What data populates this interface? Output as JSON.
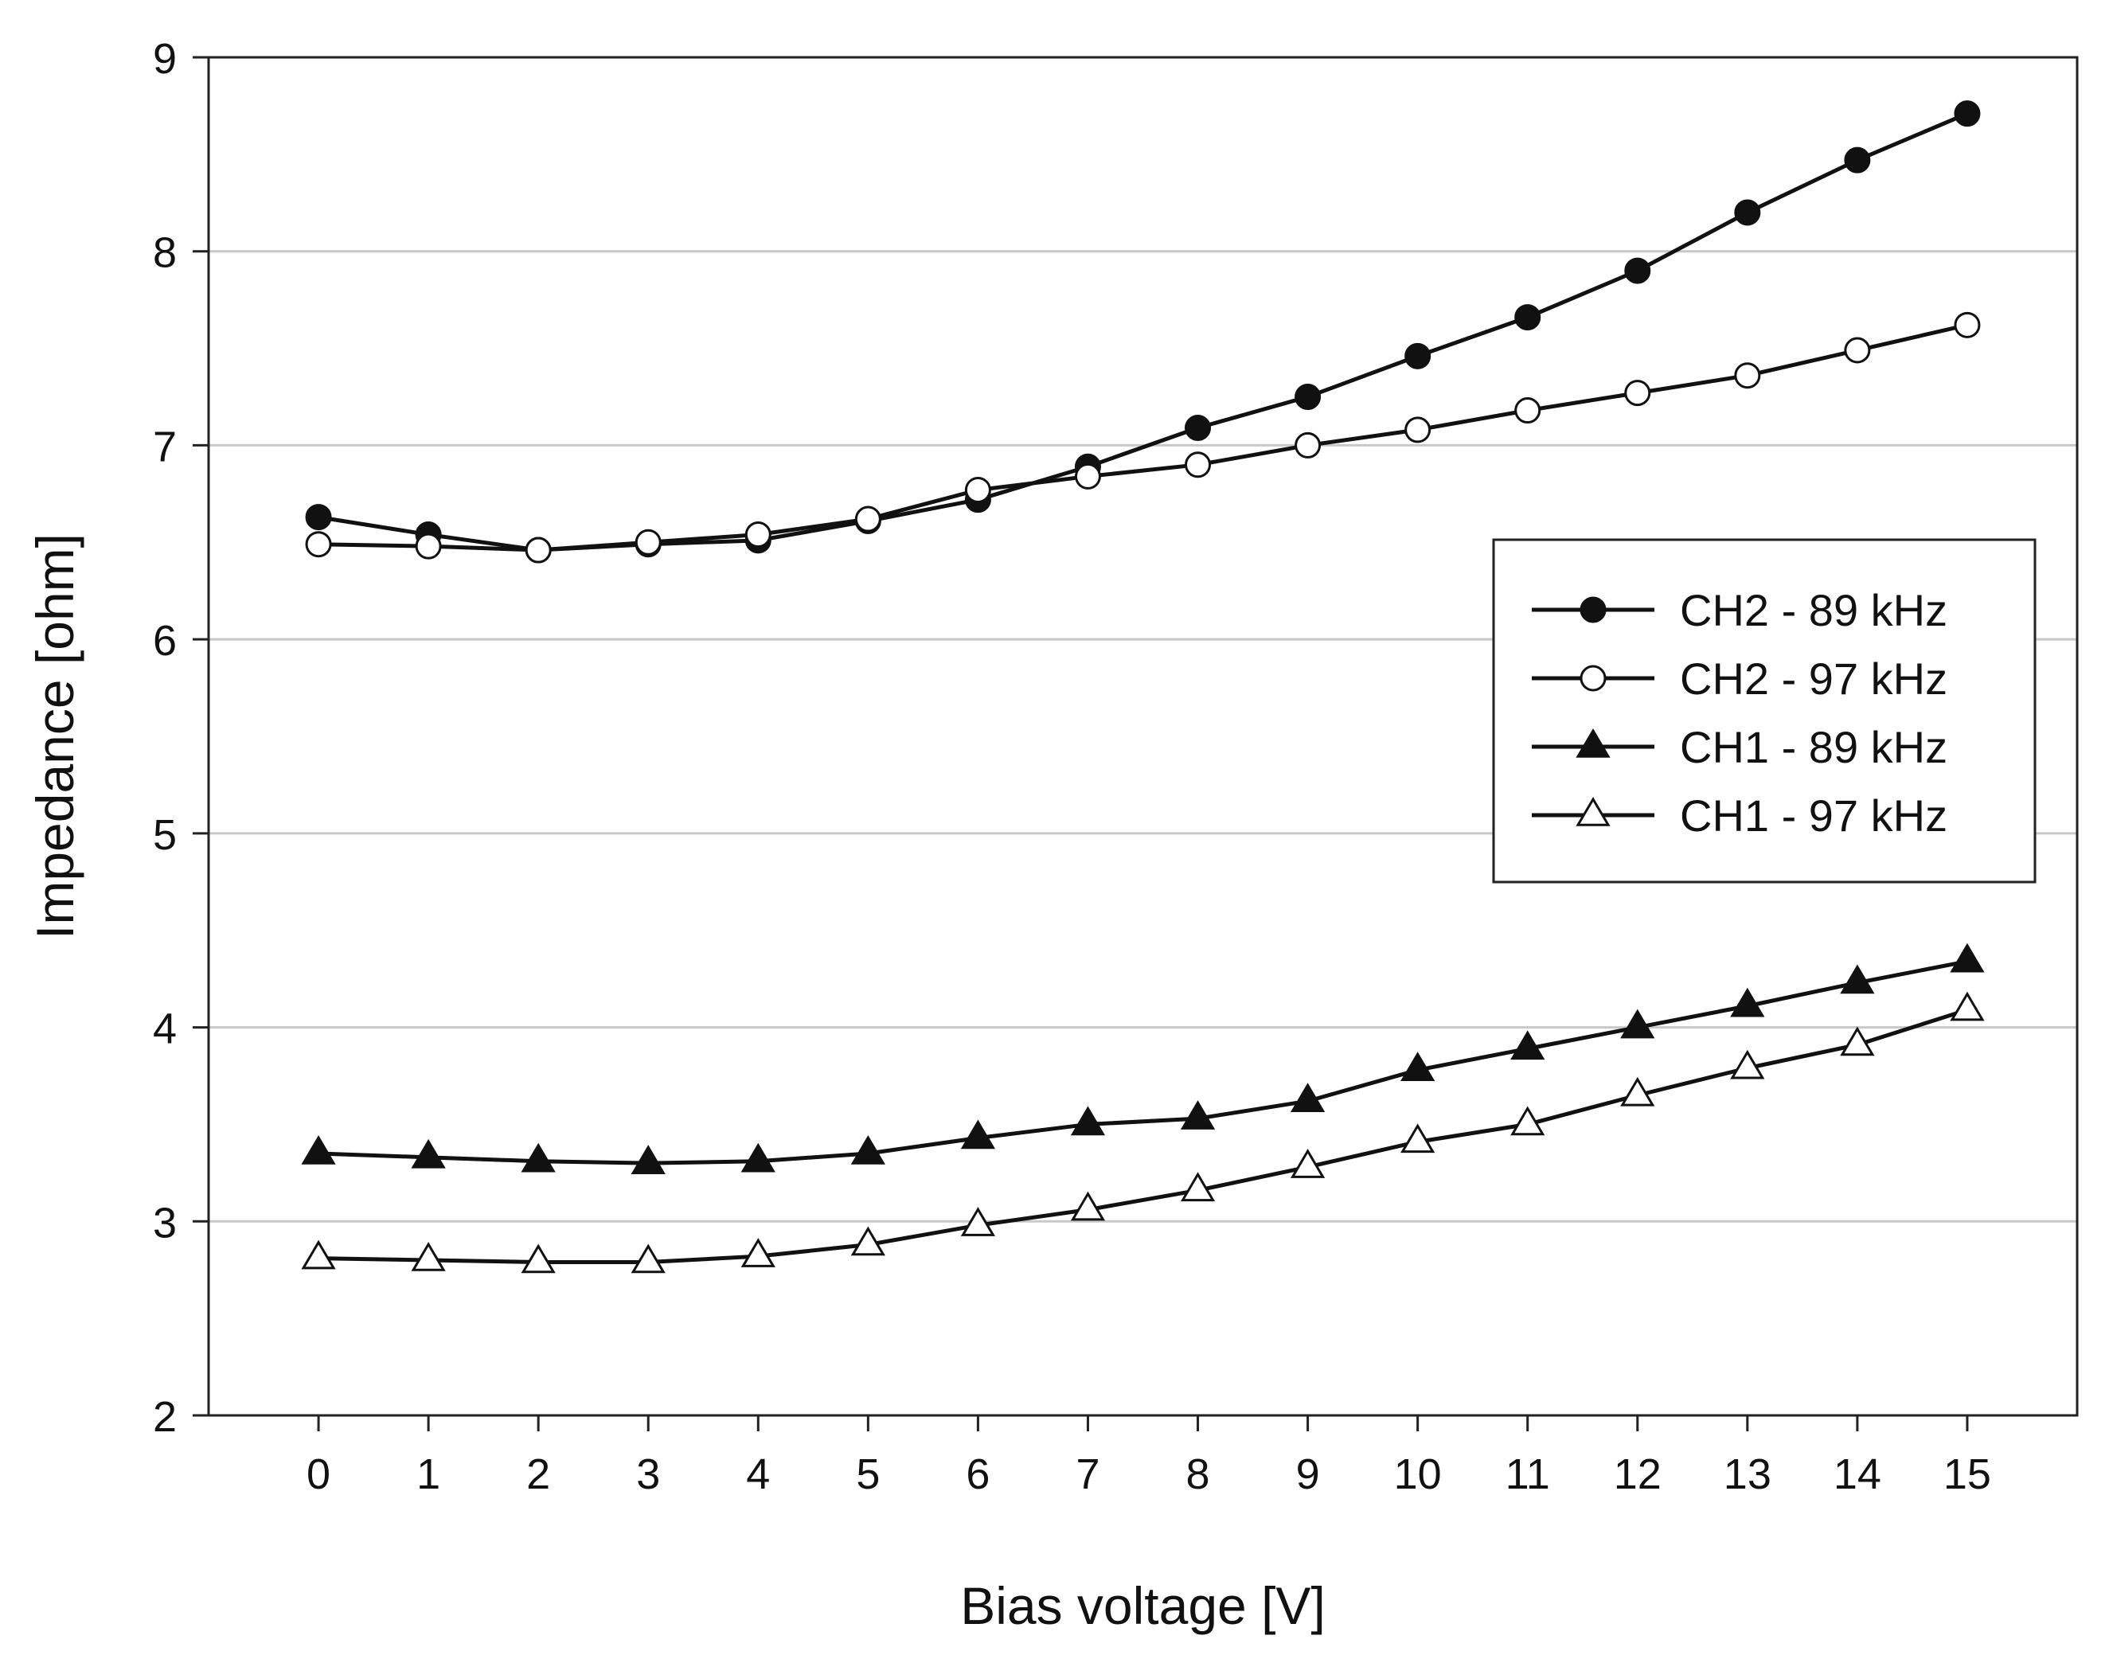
{
  "chart_data": {
    "type": "line",
    "title": "",
    "xlabel": "Bias voltage [V]",
    "ylabel": "Impedance [ohm]",
    "x": [
      0,
      1,
      2,
      3,
      4,
      5,
      6,
      7,
      8,
      9,
      10,
      11,
      12,
      13,
      14,
      15
    ],
    "x_tick_labels": [
      "0",
      "1",
      "2",
      "3",
      "4",
      "5",
      "6",
      "7",
      "8",
      "9",
      "10",
      "11",
      "12",
      "13",
      "14",
      "15"
    ],
    "xlim": [
      -1,
      16
    ],
    "ylim": [
      2,
      9
    ],
    "y_ticks": [
      2,
      3,
      4,
      5,
      6,
      7,
      8,
      9
    ],
    "y_tick_labels": [
      "2",
      "3",
      "4",
      "5",
      "6",
      "7",
      "8",
      "9"
    ],
    "grid": "horizontal",
    "legend_position": "right-center",
    "series": [
      {
        "name": "CH2 - 89 kHz",
        "marker": "filled-circle",
        "values": [
          6.63,
          6.54,
          6.46,
          6.49,
          6.51,
          6.61,
          6.72,
          6.89,
          7.09,
          7.25,
          7.46,
          7.66,
          7.9,
          8.2,
          8.47,
          8.71
        ]
      },
      {
        "name": "CH2 - 97 kHz",
        "marker": "open-circle",
        "values": [
          6.49,
          6.48,
          6.46,
          6.5,
          6.54,
          6.62,
          6.77,
          6.84,
          6.9,
          7.0,
          7.08,
          7.18,
          7.27,
          7.36,
          7.49,
          7.62
        ]
      },
      {
        "name": "CH1 - 89 kHz",
        "marker": "filled-triangle",
        "values": [
          3.35,
          3.33,
          3.31,
          3.3,
          3.31,
          3.35,
          3.43,
          3.5,
          3.53,
          3.62,
          3.78,
          3.89,
          4.0,
          4.11,
          4.23,
          4.34
        ]
      },
      {
        "name": "CH1 - 97 kHz",
        "marker": "open-triangle",
        "values": [
          2.81,
          2.8,
          2.79,
          2.79,
          2.82,
          2.88,
          2.98,
          3.06,
          3.16,
          3.28,
          3.41,
          3.5,
          3.65,
          3.79,
          3.91,
          4.09
        ]
      }
    ]
  },
  "colors": {
    "line": "#111111",
    "grid": "#c8c8c8",
    "frame": "#222222"
  }
}
